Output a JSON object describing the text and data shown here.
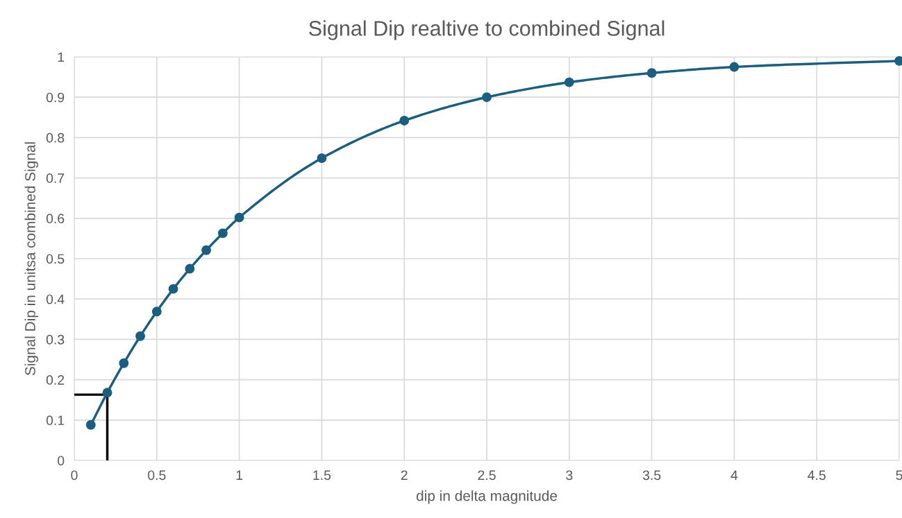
{
  "chart_data": {
    "type": "line",
    "title": "Signal Dip realtive to combined Signal",
    "xlabel": "dip in delta magnitude",
    "ylabel": "Signal Dip in unitsa combined Signal",
    "series": [
      {
        "color": "#1b5e80",
        "marker": "circle",
        "x": [
          0.1,
          0.2,
          0.3,
          0.4,
          0.5,
          0.6,
          0.7,
          0.8,
          0.9,
          1,
          1.5,
          2,
          2.5,
          3,
          3.5,
          4,
          5
        ],
        "values": [
          0.088,
          0.168,
          0.241,
          0.308,
          0.369,
          0.425,
          0.475,
          0.521,
          0.563,
          0.602,
          0.749,
          0.842,
          0.9,
          0.937,
          0.96,
          0.975,
          0.99
        ]
      },
      {
        "color": "#000000",
        "marker": "none",
        "x": [
          0,
          0.2,
          0.2
        ],
        "values": [
          0.163,
          0.163,
          0
        ]
      }
    ],
    "xlim": [
      0,
      5
    ],
    "xticks": [
      0,
      0.5,
      1,
      1.5,
      2,
      2.5,
      3,
      3.5,
      4,
      4.5,
      5
    ],
    "ylim": [
      0,
      1
    ],
    "yticks": [
      0,
      0.1,
      0.2,
      0.3,
      0.4,
      0.5,
      0.6,
      0.7,
      0.8,
      0.9,
      1
    ],
    "grid": true,
    "legend": false
  }
}
